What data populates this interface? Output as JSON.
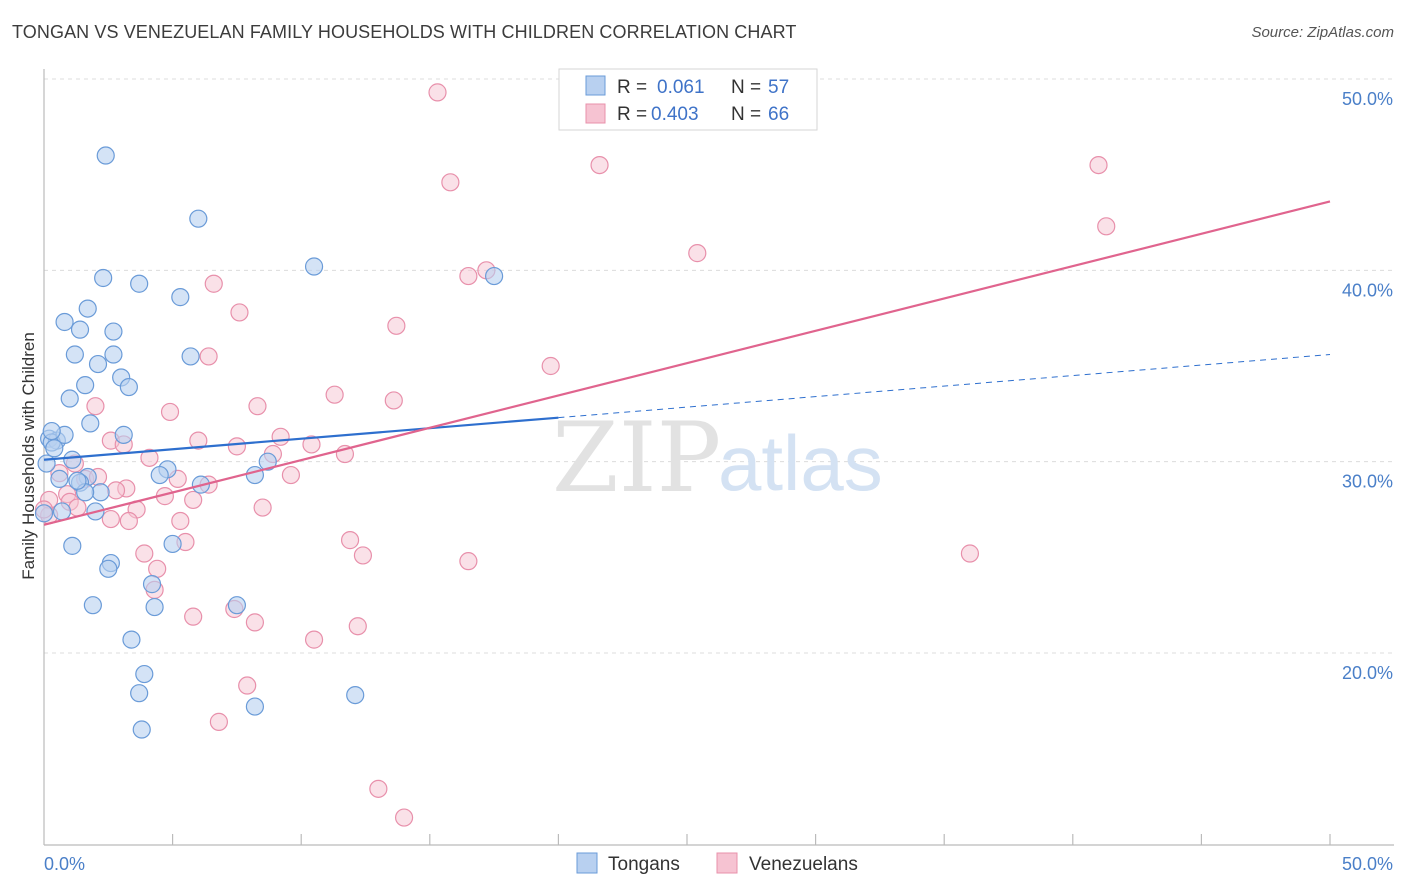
{
  "title": "TONGAN VS VENEZUELAN FAMILY HOUSEHOLDS WITH CHILDREN CORRELATION CHART",
  "source": "Source: ZipAtlas.com",
  "watermark": {
    "zip": "ZIP",
    "atlas": "atlas"
  },
  "colors": {
    "tongan_fill": "#b8d0f0",
    "tongan_stroke": "#6a9bd8",
    "tongan_line": "#2e6fce",
    "venez_fill": "#f6c3d2",
    "venez_stroke": "#e890ab",
    "venez_line": "#e0648e",
    "grid": "#dcdcdc",
    "axis_label": "#4a7fc8"
  },
  "legend": {
    "rows": [
      {
        "r_label": "R =",
        "r_value": "0.061",
        "n_label": "N =",
        "n_value": "57"
      },
      {
        "r_label": "R =",
        "r_value": "0.403",
        "n_label": "N =",
        "n_value": "66"
      }
    ]
  },
  "bottom_legend": [
    "Tongans",
    "Venezuelans"
  ],
  "chart_data": {
    "type": "scatter",
    "title": "TONGAN VS VENEZUELAN FAMILY HOUSEHOLDS WITH CHILDREN CORRELATION CHART",
    "xlabel": "",
    "ylabel": "Family Households with Children",
    "xlim": [
      0,
      50
    ],
    "ylim": [
      10,
      52
    ],
    "x_tick_labels": [
      "0.0%",
      "50.0%"
    ],
    "y_ticks": [
      20,
      30,
      40,
      50
    ],
    "y_tick_labels": [
      "20.0%",
      "30.0%",
      "40.0%",
      "50.0%"
    ],
    "series": [
      {
        "name": "Tongans",
        "R": 0.061,
        "N": 57,
        "trend": {
          "x0": 0,
          "y0": 30.1,
          "x1": 20,
          "y1": 32.3,
          "dashed_to_x": 50,
          "dashed_to_y": 35.6
        },
        "points": [
          [
            2.4,
            46.0
          ],
          [
            6.0,
            42.7
          ],
          [
            10.5,
            40.2
          ],
          [
            2.3,
            39.6
          ],
          [
            3.7,
            39.3
          ],
          [
            17.5,
            39.7
          ],
          [
            5.3,
            38.6
          ],
          [
            1.7,
            38.0
          ],
          [
            0.8,
            37.3
          ],
          [
            1.4,
            36.9
          ],
          [
            2.7,
            36.8
          ],
          [
            1.2,
            35.6
          ],
          [
            2.7,
            35.6
          ],
          [
            5.7,
            35.5
          ],
          [
            2.1,
            35.1
          ],
          [
            3.0,
            34.4
          ],
          [
            3.3,
            33.9
          ],
          [
            1.6,
            34.0
          ],
          [
            1.0,
            33.3
          ],
          [
            1.8,
            32.0
          ],
          [
            0.2,
            31.2
          ],
          [
            0.5,
            31.1
          ],
          [
            0.3,
            31.0
          ],
          [
            0.8,
            31.4
          ],
          [
            0.4,
            30.7
          ],
          [
            3.1,
            31.4
          ],
          [
            1.1,
            30.1
          ],
          [
            8.7,
            30.0
          ],
          [
            0.1,
            29.9
          ],
          [
            4.8,
            29.6
          ],
          [
            4.5,
            29.3
          ],
          [
            8.2,
            29.3
          ],
          [
            0.6,
            29.1
          ],
          [
            1.7,
            29.2
          ],
          [
            1.4,
            28.9
          ],
          [
            6.1,
            28.8
          ],
          [
            2.2,
            28.4
          ],
          [
            1.6,
            28.4
          ],
          [
            0.0,
            27.3
          ],
          [
            0.7,
            27.4
          ],
          [
            2.0,
            27.4
          ],
          [
            1.1,
            25.6
          ],
          [
            5.0,
            25.7
          ],
          [
            2.6,
            24.7
          ],
          [
            2.5,
            24.4
          ],
          [
            4.2,
            23.6
          ],
          [
            1.9,
            22.5
          ],
          [
            4.3,
            22.4
          ],
          [
            7.5,
            22.5
          ],
          [
            3.4,
            20.7
          ],
          [
            3.9,
            18.9
          ],
          [
            3.7,
            17.9
          ],
          [
            12.1,
            17.8
          ],
          [
            8.2,
            17.2
          ],
          [
            3.8,
            16.0
          ],
          [
            0.3,
            31.6
          ],
          [
            1.3,
            29.0
          ]
        ]
      },
      {
        "name": "Venezuelans",
        "R": 0.403,
        "N": 66,
        "trend": {
          "x0": 0,
          "y0": 26.7,
          "x1": 50,
          "y1": 43.6
        },
        "points": [
          [
            15.3,
            49.3
          ],
          [
            15.8,
            44.6
          ],
          [
            21.6,
            45.5
          ],
          [
            41.0,
            45.5
          ],
          [
            41.3,
            42.3
          ],
          [
            25.4,
            40.9
          ],
          [
            16.5,
            39.7
          ],
          [
            17.2,
            40.0
          ],
          [
            6.6,
            39.3
          ],
          [
            7.6,
            37.8
          ],
          [
            13.7,
            37.1
          ],
          [
            6.4,
            35.5
          ],
          [
            19.7,
            35.0
          ],
          [
            11.3,
            33.5
          ],
          [
            13.6,
            33.2
          ],
          [
            2.0,
            32.9
          ],
          [
            8.3,
            32.9
          ],
          [
            4.9,
            32.6
          ],
          [
            2.6,
            31.1
          ],
          [
            6.0,
            31.1
          ],
          [
            9.2,
            31.3
          ],
          [
            7.5,
            30.8
          ],
          [
            10.4,
            30.9
          ],
          [
            3.1,
            30.9
          ],
          [
            1.2,
            29.9
          ],
          [
            4.1,
            30.2
          ],
          [
            8.9,
            30.4
          ],
          [
            11.7,
            30.4
          ],
          [
            0.6,
            29.4
          ],
          [
            1.6,
            29.1
          ],
          [
            2.1,
            29.2
          ],
          [
            9.6,
            29.3
          ],
          [
            5.2,
            29.1
          ],
          [
            6.4,
            28.8
          ],
          [
            3.2,
            28.6
          ],
          [
            2.8,
            28.5
          ],
          [
            0.9,
            28.3
          ],
          [
            0.2,
            28.0
          ],
          [
            4.7,
            28.2
          ],
          [
            1.0,
            27.9
          ],
          [
            5.8,
            28.0
          ],
          [
            1.3,
            27.6
          ],
          [
            3.6,
            27.5
          ],
          [
            8.5,
            27.6
          ],
          [
            0.2,
            27.2
          ],
          [
            2.6,
            27.0
          ],
          [
            3.3,
            26.9
          ],
          [
            5.3,
            26.9
          ],
          [
            11.9,
            25.9
          ],
          [
            5.5,
            25.8
          ],
          [
            12.4,
            25.1
          ],
          [
            3.9,
            25.2
          ],
          [
            16.5,
            24.8
          ],
          [
            36.0,
            25.2
          ],
          [
            4.4,
            24.4
          ],
          [
            4.3,
            23.3
          ],
          [
            7.4,
            22.3
          ],
          [
            5.8,
            21.9
          ],
          [
            8.2,
            21.6
          ],
          [
            12.2,
            21.4
          ],
          [
            10.5,
            20.7
          ],
          [
            7.9,
            18.3
          ],
          [
            6.8,
            16.4
          ],
          [
            13.0,
            12.9
          ],
          [
            14.0,
            11.4
          ],
          [
            0.0,
            27.5
          ]
        ]
      }
    ]
  }
}
